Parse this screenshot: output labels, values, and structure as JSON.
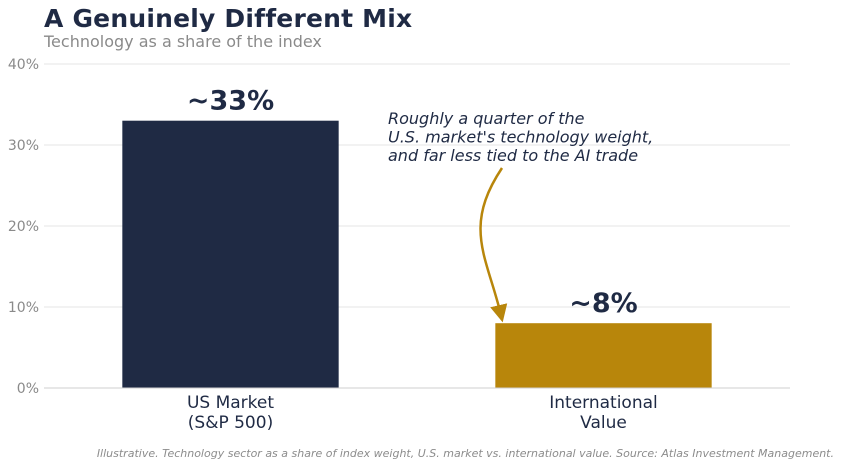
{
  "chart_data": {
    "type": "bar",
    "title": "A Genuinely Different Mix",
    "subtitle": "Technology as a share of the index",
    "categories": [
      [
        "US Market",
        "(S&P 500)"
      ],
      [
        "International",
        "Value"
      ]
    ],
    "values": [
      33,
      8
    ],
    "data_labels": [
      "~33%",
      "~8%"
    ],
    "bar_colors": [
      "#1f2a44",
      "#b8860b"
    ],
    "ylim": [
      0,
      40
    ],
    "yticks": [
      0,
      10,
      20,
      30,
      40
    ],
    "ytick_labels": [
      "0%",
      "10%",
      "20%",
      "30%",
      "40%"
    ],
    "grid": true,
    "annotation": {
      "lines": [
        "Roughly a quarter of the",
        "U.S. market's technology weight,",
        "and far less tied to the AI trade"
      ],
      "points_to": "International Value",
      "arrow_color": "#b8860b"
    },
    "footnote": "Illustrative. Technology sector as a share of index weight, U.S. market vs. international value.  Source: Atlas Investment Management."
  }
}
